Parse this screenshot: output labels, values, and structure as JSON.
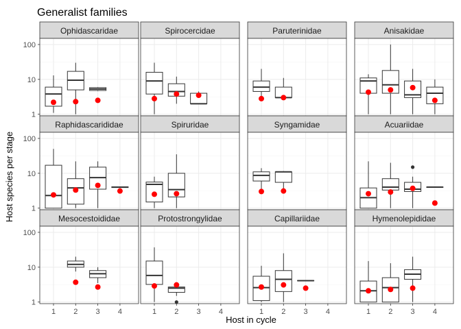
{
  "chart_data": {
    "type": "box",
    "title": "Generalist families",
    "xlabel": "Host in cycle",
    "ylabel": "Host species per stage",
    "x_categories": [
      "1",
      "2",
      "3",
      "4"
    ],
    "y_scale": "log10",
    "ylim": [
      0.9,
      150
    ],
    "y_ticks": [
      1,
      10,
      100
    ],
    "y_tick_labels": [
      "1",
      "10",
      "100"
    ],
    "grid": true,
    "facet_grid": {
      "rows": 3,
      "cols": 4
    },
    "colors": {
      "box_fill": "#ffffff",
      "box_stroke": "#333333",
      "mean_point": "#ff0000",
      "outlier": "#333333",
      "panel_bg": "#ffffff",
      "strip_bg": "#d9d9d9",
      "grid_major": "#ebebeb",
      "grid_minor": "#f5f5f5"
    },
    "facets": [
      {
        "name": "Ophidascaridae",
        "boxes": [
          {
            "host": 1,
            "min": 1.1,
            "q1": 1.7,
            "median": 3.8,
            "q3": 6.0,
            "max": 13,
            "mean": 2.2,
            "outliers": []
          },
          {
            "host": 2,
            "min": 1.0,
            "q1": 5.0,
            "median": 9.5,
            "q3": 17,
            "max": 30,
            "mean": 2.3,
            "outliers": []
          },
          {
            "host": 3,
            "min": 4.6,
            "q1": 4.8,
            "median": 5.3,
            "q3": 5.8,
            "max": 6.0,
            "mean": 2.5,
            "outliers": []
          }
        ]
      },
      {
        "name": "Spirocercidae",
        "boxes": [
          {
            "host": 1,
            "min": 1.0,
            "q1": 3.8,
            "median": 9.0,
            "q3": 16,
            "max": 30,
            "mean": 2.8,
            "outliers": []
          },
          {
            "host": 2,
            "min": 2.0,
            "q1": 3.3,
            "median": 4.5,
            "q3": 7.5,
            "max": 12,
            "mean": 3.8,
            "outliers": []
          },
          {
            "host": 3,
            "min": 2.0,
            "q1": 2.0,
            "median": 2.0,
            "q3": 4.0,
            "max": 4.5,
            "mean": 3.5,
            "outliers": []
          }
        ]
      },
      {
        "name": "Paruterinidae",
        "boxes": [
          {
            "host": 1,
            "min": 2.7,
            "q1": 4.5,
            "median": 6.0,
            "q3": 9.0,
            "max": 20,
            "mean": 2.8,
            "outliers": []
          },
          {
            "host": 2,
            "min": 2.7,
            "q1": 3.0,
            "median": 3.0,
            "q3": 6.0,
            "max": 11,
            "mean": 3.0,
            "outliers": []
          }
        ]
      },
      {
        "name": "Anisakidae",
        "boxes": [
          {
            "host": 1,
            "min": 1.0,
            "q1": 4.0,
            "median": 9.0,
            "q3": 11,
            "max": 14,
            "mean": 4.3,
            "outliers": []
          },
          {
            "host": 2,
            "min": 1.0,
            "q1": 4.0,
            "median": 7.0,
            "q3": 18,
            "max": 100,
            "mean": 5.0,
            "outliers": []
          },
          {
            "host": 3,
            "min": 1.0,
            "q1": 3.0,
            "median": 3.6,
            "q3": 9.0,
            "max": 20,
            "mean": 5.8,
            "outliers": []
          },
          {
            "host": 4,
            "min": 1.0,
            "q1": 2.0,
            "median": 4.0,
            "q3": 6.0,
            "max": 10,
            "mean": 2.5,
            "outliers": []
          }
        ]
      },
      {
        "name": "Raphidascarididae",
        "boxes": [
          {
            "host": 1,
            "min": 1.0,
            "q1": 1.0,
            "median": 2.3,
            "q3": 17,
            "max": 50,
            "mean": 2.4,
            "outliers": []
          },
          {
            "host": 2,
            "min": 1.0,
            "q1": 1.3,
            "median": 3.8,
            "q3": 7.0,
            "max": 22,
            "mean": 3.3,
            "outliers": []
          },
          {
            "host": 3,
            "min": 1.0,
            "q1": 3.5,
            "median": 7.5,
            "q3": 15,
            "max": 22,
            "mean": 4.5,
            "outliers": []
          },
          {
            "host": 4,
            "min": 3.8,
            "q1": 3.9,
            "median": 4.0,
            "q3": 4.1,
            "max": 4.2,
            "mean": 3.1,
            "outliers": []
          }
        ]
      },
      {
        "name": "Spiruridae",
        "boxes": [
          {
            "host": 1,
            "min": 1.0,
            "q1": 1.5,
            "median": 4.8,
            "q3": 5.6,
            "max": 8.0,
            "mean": 2.5,
            "outliers": []
          },
          {
            "host": 2,
            "min": 1.0,
            "q1": 2.1,
            "median": 3.4,
            "q3": 10,
            "max": 35,
            "mean": 2.6,
            "outliers": []
          }
        ]
      },
      {
        "name": "Syngamidae",
        "boxes": [
          {
            "host": 1,
            "min": 3.0,
            "q1": 6.0,
            "median": 8.7,
            "q3": 11,
            "max": 14,
            "mean": 3.0,
            "outliers": []
          },
          {
            "host": 2,
            "min": 3.0,
            "q1": 5.5,
            "median": 11,
            "q3": 11,
            "max": 11.5,
            "mean": 3.1,
            "outliers": []
          }
        ]
      },
      {
        "name": "Acuariidae",
        "boxes": [
          {
            "host": 1,
            "min": 1.0,
            "q1": 1.0,
            "median": 2.0,
            "q3": 3.8,
            "max": 22,
            "mean": 2.6,
            "outliers": []
          },
          {
            "host": 2,
            "min": 1.0,
            "q1": 3.3,
            "median": 4.0,
            "q3": 7.0,
            "max": 20,
            "mean": 2.9,
            "outliers": []
          },
          {
            "host": 3,
            "min": 1.0,
            "q1": 3.0,
            "median": 3.5,
            "q3": 5.5,
            "max": 8.0,
            "mean": 3.7,
            "outliers": [
              15
            ]
          },
          {
            "host": 4,
            "min": 3.9,
            "q1": 3.95,
            "median": 4.0,
            "q3": 4.05,
            "max": 4.1,
            "mean": 1.4,
            "outliers": []
          }
        ]
      },
      {
        "name": "Mesocestoididae",
        "boxes": [
          {
            "host": 2,
            "min": 7.5,
            "q1": 10,
            "median": 12,
            "q3": 15,
            "max": 20,
            "mean": 3.7,
            "outliers": []
          },
          {
            "host": 3,
            "min": 3.5,
            "q1": 5.0,
            "median": 6.5,
            "q3": 8.0,
            "max": 10,
            "mean": 2.7,
            "outliers": []
          }
        ]
      },
      {
        "name": "Protostrongylidae",
        "boxes": [
          {
            "host": 1,
            "min": 1.0,
            "q1": 3.2,
            "median": 5.8,
            "q3": 15,
            "max": 37,
            "mean": 2.9,
            "outliers": []
          },
          {
            "host": 2,
            "min": 1.5,
            "q1": 1.9,
            "median": 2.5,
            "q3": 2.7,
            "max": 3.4,
            "mean": 3.1,
            "outliers": [
              1.0
            ]
          }
        ]
      },
      {
        "name": "Capillariidae",
        "boxes": [
          {
            "host": 1,
            "min": 1.0,
            "q1": 1.1,
            "median": 2.6,
            "q3": 5.5,
            "max": 11,
            "mean": 2.7,
            "outliers": []
          },
          {
            "host": 2,
            "min": 1.0,
            "q1": 2.0,
            "median": 4.5,
            "q3": 8.0,
            "max": 25,
            "mean": 3.1,
            "outliers": []
          },
          {
            "host": 3,
            "min": 4.0,
            "q1": 4.05,
            "median": 4.1,
            "q3": 4.15,
            "max": 4.2,
            "mean": 2.5,
            "outliers": []
          }
        ]
      },
      {
        "name": "Hymenolepididae",
        "boxes": [
          {
            "host": 1,
            "min": 1.0,
            "q1": 1.0,
            "median": 2.1,
            "q3": 4.0,
            "max": 15,
            "mean": 2.1,
            "outliers": []
          },
          {
            "host": 2,
            "min": 1.0,
            "q1": 1.0,
            "median": 2.6,
            "q3": 5.0,
            "max": 13,
            "mean": 2.3,
            "outliers": []
          },
          {
            "host": 3,
            "min": 1.0,
            "q1": 4.5,
            "median": 6.3,
            "q3": 8.5,
            "max": 20,
            "mean": 2.5,
            "outliers": []
          }
        ]
      }
    ]
  }
}
